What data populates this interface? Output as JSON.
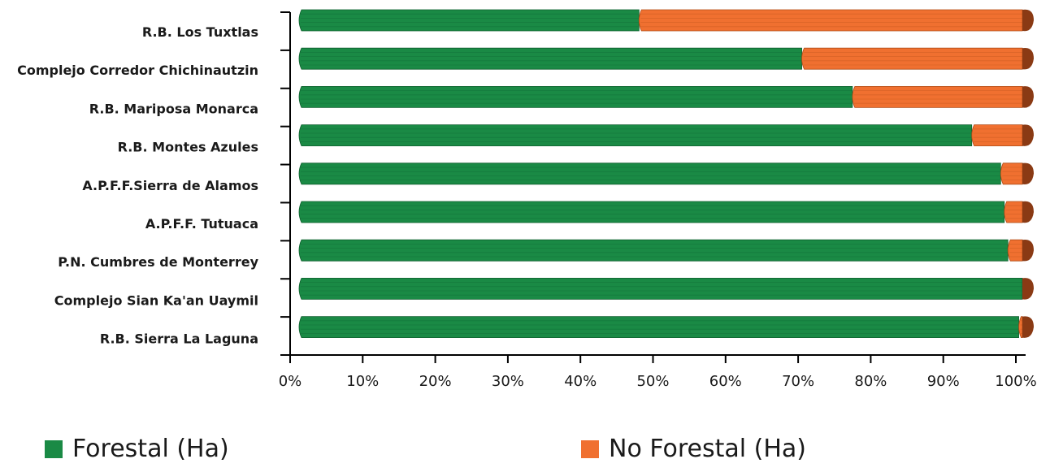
{
  "chart_data": {
    "type": "bar",
    "orientation": "horizontal",
    "stacked": "percent",
    "categories": [
      "R.B. Los Tuxtlas",
      "Complejo Corredor Chichinautzin",
      "R.B. Mariposa Monarca",
      "R.B. Montes Azules",
      "A.P.F.F.Sierra de Alamos",
      "A.P.F.F. Tutuaca",
      "P.N. Cumbres de Monterrey",
      "Complejo Sian Ka'an Uaymil",
      "R.B. Sierra La Laguna"
    ],
    "series": [
      {
        "name": "Forestal (Ha)",
        "color": "#1a8a45",
        "values": [
          47,
          69.5,
          76.5,
          93,
          97,
          97.5,
          98,
          100,
          99.5
        ]
      },
      {
        "name": "No Forestal (Ha)",
        "color": "#f07030",
        "values": [
          53,
          30.5,
          23.5,
          7,
          3,
          2.5,
          2,
          0,
          0.5
        ]
      }
    ],
    "xlim": [
      0,
      100
    ],
    "xticks": [
      "0%",
      "10%",
      "20%",
      "30%",
      "40%",
      "50%",
      "60%",
      "70%",
      "80%",
      "90%",
      "100%"
    ],
    "grid": false,
    "legend_position": "bottom"
  },
  "legend": {
    "forestal": "Forestal (Ha)",
    "no_forestal": "No Forestal (Ha)"
  }
}
